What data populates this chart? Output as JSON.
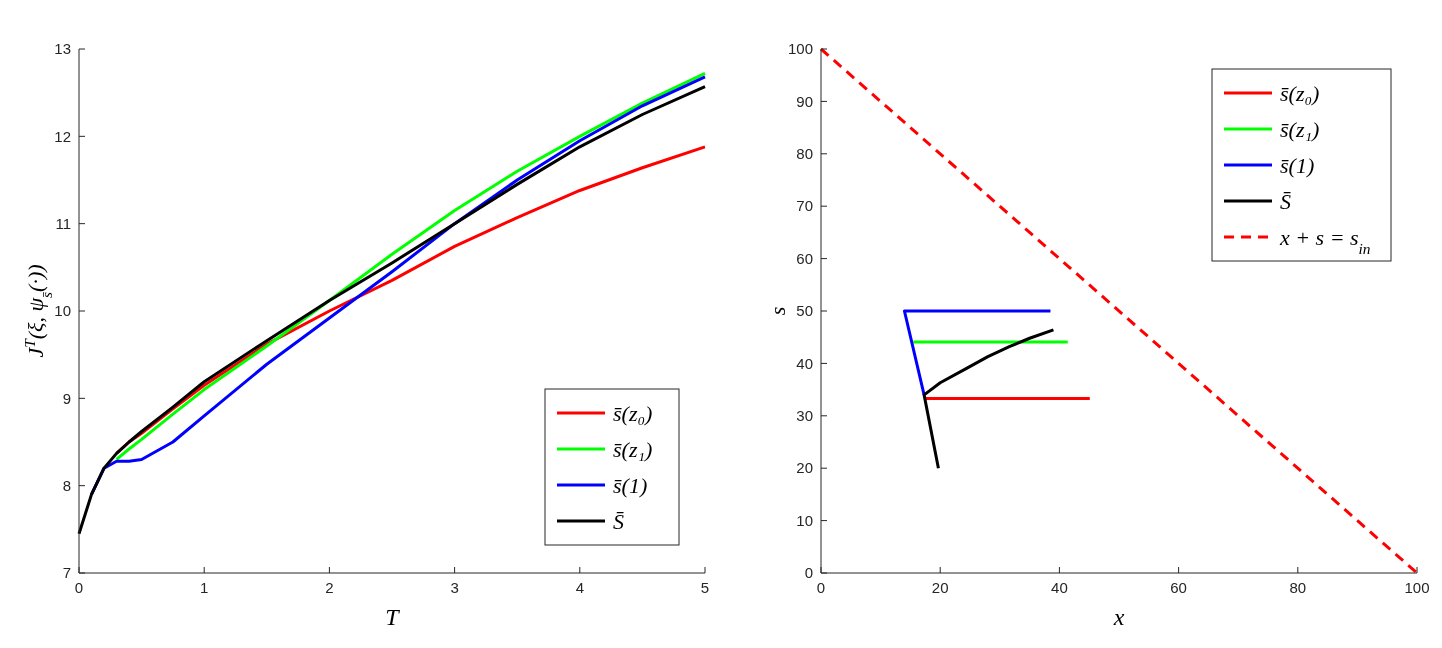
{
  "chart_data": [
    {
      "type": "line",
      "xlabel": "T",
      "ylabel": "J$^{T}$(ξ, ψ$_{s̄}$(·))",
      "xlim": [
        0,
        5
      ],
      "ylim": [
        7,
        13
      ],
      "xticks": [
        0,
        1,
        2,
        3,
        4,
        5
      ],
      "yticks": [
        7,
        8,
        9,
        10,
        11,
        12,
        13
      ],
      "legend": "bottom right",
      "x": [
        0,
        0.1,
        0.2,
        0.3,
        0.4,
        0.5,
        0.75,
        1,
        1.5,
        2,
        2.5,
        3,
        3.5,
        4,
        4.5,
        5
      ],
      "series": [
        {
          "name": "s̄(z₀)",
          "color": "#ff0000",
          "values": [
            null,
            null,
            null,
            8.37,
            8.5,
            8.6,
            8.88,
            9.15,
            9.62,
            10.0,
            10.35,
            10.74,
            11.07,
            11.38,
            11.64,
            11.88
          ]
        },
        {
          "name": "s̄(z₁)",
          "color": "#00ff00",
          "values": [
            null,
            null,
            null,
            8.3,
            8.42,
            8.53,
            8.82,
            9.1,
            9.6,
            10.12,
            10.65,
            11.15,
            11.6,
            12.0,
            12.38,
            12.72
          ]
        },
        {
          "name": "s̄(1)",
          "color": "#0000ff",
          "values": [
            null,
            7.9,
            8.2,
            8.28,
            8.28,
            8.3,
            8.5,
            8.8,
            9.39,
            9.92,
            10.45,
            11.0,
            11.5,
            11.95,
            12.35,
            12.68
          ]
        },
        {
          "name": "S̄",
          "color": "#000000",
          "values": [
            7.45,
            7.9,
            8.2,
            8.37,
            8.5,
            8.62,
            8.9,
            9.19,
            9.66,
            10.12,
            10.55,
            11.0,
            11.45,
            11.88,
            12.25,
            12.57
          ]
        }
      ]
    },
    {
      "type": "line",
      "xlabel": "x",
      "ylabel": "s",
      "xlim": [
        0,
        100
      ],
      "ylim": [
        0,
        100
      ],
      "xticks": [
        0,
        20,
        40,
        60,
        80,
        100
      ],
      "yticks": [
        0,
        10,
        20,
        30,
        40,
        50,
        60,
        70,
        80,
        90,
        100
      ],
      "legend": "top right",
      "series": [
        {
          "name": "s̄(z₀)",
          "color": "#ff0000",
          "x": [
            17.3,
            45.1
          ],
          "values": [
            33.3,
            33.3
          ]
        },
        {
          "name": "s̄(z₁)",
          "color": "#00ff00",
          "x": [
            15.5,
            41.4
          ],
          "values": [
            44.1,
            44.1
          ]
        },
        {
          "name": "s̄(1)",
          "color": "#0000ff",
          "x": [
            38.5,
            14,
            17.3
          ],
          "values": [
            50,
            50,
            34
          ]
        },
        {
          "name": "S̄",
          "color": "#000000",
          "x": [
            19.7,
            17.3,
            20,
            24.5,
            28,
            31.6,
            35,
            39
          ],
          "values": [
            20,
            34,
            36.3,
            39.1,
            41.3,
            43.2,
            44.8,
            46.4
          ]
        },
        {
          "name": "x + s = s$_{in}$",
          "color": "#ff0000",
          "line_style": "dashed",
          "x": [
            0,
            100
          ],
          "values": [
            100,
            0
          ]
        }
      ]
    }
  ]
}
